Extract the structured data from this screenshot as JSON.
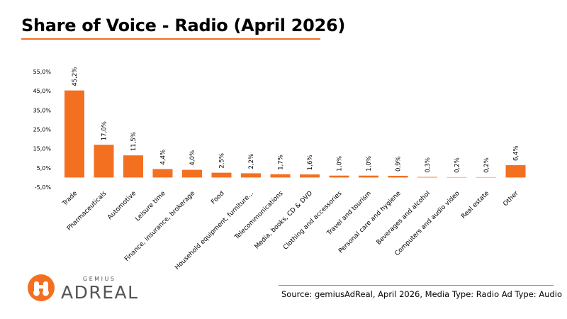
{
  "header": {
    "title": "Share of Voice - Radio (April 2026)"
  },
  "footer": {
    "source": "Source: gemiusAdReal, April 2026, Media Type: Radio Ad Type: Audio"
  },
  "logo": {
    "top_text": "GEMIUS",
    "main_text": "ADREAL",
    "icon": "binoculars-icon"
  },
  "colors": {
    "bar": "#f37021",
    "accent": "#f37021"
  },
  "chart_data": {
    "type": "bar",
    "title": "Share of Voice - Radio (April 2026)",
    "xlabel": "",
    "ylabel": "",
    "ylim": [
      -5,
      55
    ],
    "yticks": [
      55,
      45,
      35,
      25,
      15,
      5,
      -5
    ],
    "ytick_labels": [
      "55,0%",
      "45,0%",
      "35,0%",
      "25,0%",
      "15,0%",
      "5,0%",
      "-5,0%"
    ],
    "grid": false,
    "legend": "none",
    "categories": [
      "Trade",
      "Pharmaceuticals",
      "Automotive",
      "Leisure time",
      "Finance, insurance, brokerage",
      "Food",
      "Household equipment, furniture...",
      "Telecommunications",
      "Media, books, CD & DVD",
      "Clothing and accessories",
      "Travel and tourism",
      "Personal care and hygiene",
      "Beverages and alcohol",
      "Computers and audio video",
      "Real estate",
      "Other"
    ],
    "values": [
      45.2,
      17.0,
      11.5,
      4.4,
      4.0,
      2.5,
      2.2,
      1.7,
      1.6,
      1.0,
      1.0,
      0.9,
      0.3,
      0.2,
      0.2,
      6.4
    ],
    "value_labels": [
      "45,2%",
      "17,0%",
      "11,5%",
      "4,4%",
      "4,0%",
      "2,5%",
      "2,2%",
      "1,7%",
      "1,6%",
      "1,0%",
      "1,0%",
      "0,9%",
      "0,3%",
      "0,2%",
      "0,2%",
      "6,4%"
    ]
  }
}
